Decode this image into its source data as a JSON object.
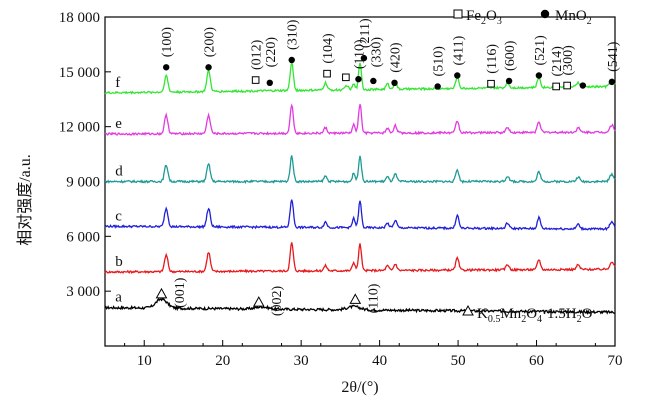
{
  "chart_data": {
    "type": "line",
    "title": "",
    "xlabel": "2θ/(°)",
    "ylabel": "相对强度/a.u.",
    "xlim": [
      5,
      70
    ],
    "ylim": [
      0,
      18000
    ],
    "x_ticks": [
      "10",
      "20",
      "30",
      "40",
      "50",
      "60",
      "70"
    ],
    "y_ticks": [
      "3 000",
      "6 000",
      "9 000",
      "12 000",
      "15 000",
      "18 000"
    ],
    "grid": false,
    "legend": {
      "top": [
        {
          "symbol": "square",
          "label": "Fe2O3"
        },
        {
          "symbol": "dot",
          "label": "MnO2"
        }
      ],
      "bottom_right": {
        "symbol": "triangle",
        "label": "K0.5Mn2O4·1.5H2O"
      }
    },
    "series": [
      {
        "name": "a",
        "color": "#000000",
        "baseline": 2100,
        "end": 1850,
        "noise": 70,
        "drift": "down",
        "peaks": [
          [
            12.2,
            500,
            0.7
          ],
          [
            25.0,
            120,
            0.8
          ],
          [
            36.7,
            180,
            0.8
          ]
        ]
      },
      {
        "name": "b",
        "color": "#e8191c",
        "baseline": 4050,
        "end": 4200,
        "noise": 55,
        "drift": "flat",
        "peaks": [
          [
            12.8,
            900,
            0.22
          ],
          [
            18.2,
            1050,
            0.22
          ],
          [
            28.8,
            1550,
            0.2
          ],
          [
            33.1,
            280,
            0.2
          ],
          [
            36.7,
            450,
            0.18
          ],
          [
            37.5,
            1450,
            0.18
          ],
          [
            41.0,
            250,
            0.2
          ],
          [
            42.0,
            350,
            0.2
          ],
          [
            49.9,
            650,
            0.2
          ],
          [
            56.3,
            300,
            0.2
          ],
          [
            60.3,
            550,
            0.2
          ],
          [
            65.3,
            250,
            0.2
          ],
          [
            69.6,
            420,
            0.25
          ]
        ]
      },
      {
        "name": "c",
        "color": "#2020d8",
        "baseline": 6550,
        "end": 6400,
        "noise": 55,
        "drift": "flat",
        "peaks": [
          [
            12.8,
            1000,
            0.22
          ],
          [
            18.2,
            1000,
            0.22
          ],
          [
            28.8,
            1550,
            0.2
          ],
          [
            33.1,
            300,
            0.2
          ],
          [
            36.7,
            500,
            0.18
          ],
          [
            37.5,
            1450,
            0.18
          ],
          [
            41.0,
            250,
            0.2
          ],
          [
            42.0,
            400,
            0.2
          ],
          [
            49.9,
            700,
            0.2
          ],
          [
            56.3,
            300,
            0.2
          ],
          [
            60.3,
            600,
            0.2
          ],
          [
            65.3,
            250,
            0.2
          ],
          [
            69.6,
            420,
            0.25
          ]
        ]
      },
      {
        "name": "d",
        "color": "#1f9a96",
        "baseline": 9000,
        "end": 9000,
        "noise": 55,
        "drift": "flat",
        "peaks": [
          [
            12.8,
            900,
            0.22
          ],
          [
            18.2,
            950,
            0.22
          ],
          [
            28.8,
            1400,
            0.2
          ],
          [
            33.1,
            300,
            0.2
          ],
          [
            36.7,
            450,
            0.18
          ],
          [
            37.5,
            1400,
            0.18
          ],
          [
            41.0,
            250,
            0.2
          ],
          [
            42.0,
            400,
            0.2
          ],
          [
            49.9,
            650,
            0.2
          ],
          [
            56.3,
            300,
            0.2
          ],
          [
            60.3,
            550,
            0.2
          ],
          [
            65.3,
            250,
            0.2
          ],
          [
            69.6,
            400,
            0.25
          ]
        ]
      },
      {
        "name": "e",
        "color": "#e23ae0",
        "baseline": 11600,
        "end": 11700,
        "noise": 55,
        "drift": "flat",
        "peaks": [
          [
            12.8,
            1000,
            0.22
          ],
          [
            18.2,
            1000,
            0.22
          ],
          [
            28.8,
            1550,
            0.2
          ],
          [
            33.1,
            300,
            0.2
          ],
          [
            36.7,
            450,
            0.18
          ],
          [
            37.5,
            1600,
            0.18
          ],
          [
            41.0,
            250,
            0.2
          ],
          [
            42.0,
            400,
            0.2
          ],
          [
            49.9,
            650,
            0.2
          ],
          [
            56.3,
            300,
            0.2
          ],
          [
            60.3,
            600,
            0.2
          ],
          [
            65.3,
            250,
            0.2
          ],
          [
            69.6,
            400,
            0.25
          ]
        ]
      },
      {
        "name": "f",
        "color": "#33e633",
        "baseline": 13850,
        "end": 14200,
        "noise": 55,
        "drift": "flat",
        "peaks": [
          [
            12.8,
            900,
            0.22
          ],
          [
            18.2,
            1150,
            0.22
          ],
          [
            28.8,
            1550,
            0.2
          ],
          [
            33.1,
            400,
            0.2
          ],
          [
            35.8,
            250,
            0.2
          ],
          [
            36.7,
            300,
            0.18
          ],
          [
            37.5,
            1500,
            0.18
          ],
          [
            41.0,
            300,
            0.2
          ],
          [
            42.0,
            350,
            0.2
          ],
          [
            49.9,
            650,
            0.2
          ],
          [
            56.3,
            280,
            0.2
          ],
          [
            60.3,
            550,
            0.2
          ],
          [
            65.3,
            250,
            0.2
          ],
          [
            69.6,
            400,
            0.25
          ]
        ]
      }
    ],
    "annotations": {
      "mno2_peaks": [
        {
          "label": "(100)",
          "x": 12.8,
          "marker_y": 15250
        },
        {
          "label": "(200)",
          "x": 18.2,
          "marker_y": 15250
        },
        {
          "label": "(310)",
          "x": 28.8,
          "marker_y": 15650
        },
        {
          "label": "(110)",
          "x": 37.3,
          "marker_y": 14600
        },
        {
          "label": "(211)",
          "x": 38.0,
          "marker_y": 15750
        },
        {
          "label": "(420)",
          "x": 41.9,
          "marker_y": 14400
        },
        {
          "label": "(510)",
          "x": 47.4,
          "marker_y": 14200
        },
        {
          "label": "(411)",
          "x": 49.9,
          "marker_y": 14800
        },
        {
          "label": "(600)",
          "x": 56.5,
          "marker_y": 14500
        },
        {
          "label": "(521)",
          "x": 60.3,
          "marker_y": 14800
        },
        {
          "label": "(541)",
          "x": 69.6,
          "marker_y": 14450
        }
      ],
      "fe2o3_peaks": [
        {
          "label": "(012)",
          "x": 24.2,
          "marker_y": 14550
        },
        {
          "label": "(104)",
          "x": 33.3,
          "marker_y": 14900
        },
        {
          "label": "(116)",
          "x": 54.2,
          "marker_y": 14350
        },
        {
          "label": "(214)",
          "x": 62.5,
          "marker_y": 14200
        },
        {
          "label": "(300)",
          "x": 63.9,
          "marker_y": 14250
        }
      ],
      "extra_mno2_markers": [
        {
          "x": 26.0,
          "marker_y": 14400
        },
        {
          "x": 39.2,
          "marker_y": 14500
        },
        {
          "x": 65.9,
          "marker_y": 14250
        }
      ],
      "extra_fe2o3_markers": [
        {
          "x": 35.7,
          "marker_y": 14700
        }
      ],
      "plain_labels": [
        {
          "label": "(220)",
          "x": 26.0
        },
        {
          "label": "(330)",
          "x": 39.5
        }
      ],
      "k_phase_peaks": [
        {
          "label": "(001)",
          "x": 12.2,
          "marker_y": 2850
        },
        {
          "label": "(002)",
          "x": 24.6,
          "marker_y": 2400
        },
        {
          "label": "(110)",
          "x": 36.9,
          "marker_y": 2550
        }
      ]
    }
  }
}
